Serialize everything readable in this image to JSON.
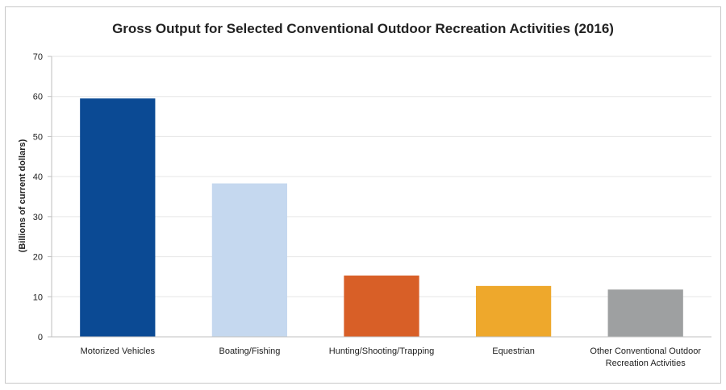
{
  "chart_data": {
    "type": "bar",
    "title": "Gross Output for Selected Conventional Outdoor Recreation Activities (2016)",
    "xlabel": "",
    "ylabel": "(Billions of current dollars)",
    "ylim": [
      0,
      70
    ],
    "yticks": [
      0,
      10,
      20,
      30,
      40,
      50,
      60,
      70
    ],
    "grid": true,
    "legend": "none",
    "categories": [
      [
        "Motorized Vehicles"
      ],
      [
        "Boating/Fishing"
      ],
      [
        "Hunting/Shooting/Trapping"
      ],
      [
        "Equestrian"
      ],
      [
        "Other Conventional Outdoor",
        "Recreation Activities"
      ]
    ],
    "values": [
      59.5,
      38.3,
      15.3,
      12.7,
      11.8
    ],
    "colors": [
      "#0b4a94",
      "#c5d8ef",
      "#d85f27",
      "#eea82c",
      "#9ea0a1"
    ]
  }
}
